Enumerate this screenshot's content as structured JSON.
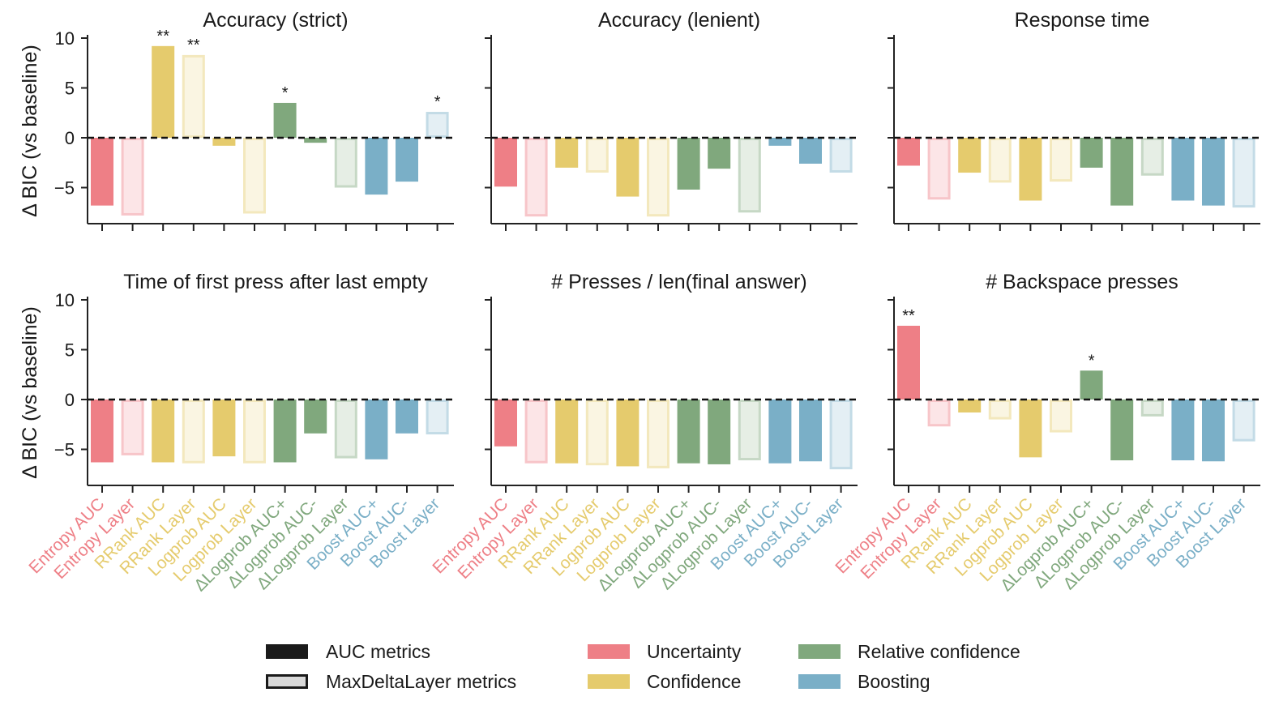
{
  "figure": {
    "ylabel": "Δ BIC (vs baseline)",
    "ylim": [
      -8.5,
      10
    ],
    "yticks": [
      10,
      5,
      0,
      -5
    ],
    "ytick_labels": [
      "10",
      "5",
      "0",
      "−5"
    ]
  },
  "palette": {
    "Uncertainty": "#ee7f86",
    "Confidence": "#e5cb6d",
    "Relative confidence": "#80a87d",
    "Boosting": "#7aafc7"
  },
  "legend": {
    "style_items": [
      {
        "label": "AUC metrics",
        "style": "solid"
      },
      {
        "label": "MaxDeltaLayer metrics",
        "style": "outline"
      }
    ],
    "color_items": [
      {
        "label": "Uncertainty",
        "group": "Uncertainty"
      },
      {
        "label": "Confidence",
        "group": "Confidence"
      },
      {
        "label": "Relative confidence",
        "group": "Relative confidence"
      },
      {
        "label": "Boosting",
        "group": "Boosting"
      }
    ]
  },
  "chart_data": [
    {
      "type": "bar",
      "title": "Accuracy (strict)",
      "categories": [
        "Entropy AUC",
        "Entropy Layer",
        "RRank AUC",
        "RRank Layer",
        "Logprob AUC",
        "Logprob Layer",
        "ΔLogprob AUC+",
        "ΔLogprob AUC-",
        "ΔLogprob Layer",
        "Boost AUC+",
        "Boost AUC-",
        "Boost Layer"
      ],
      "groups": [
        "Uncertainty",
        "Uncertainty",
        "Confidence",
        "Confidence",
        "Confidence",
        "Confidence",
        "Relative confidence",
        "Relative confidence",
        "Relative confidence",
        "Boosting",
        "Boosting",
        "Boosting"
      ],
      "styles": [
        "solid",
        "outline",
        "solid",
        "outline",
        "solid",
        "outline",
        "solid",
        "solid",
        "outline",
        "solid",
        "solid",
        "outline"
      ],
      "values": [
        -6.8,
        -7.8,
        9.2,
        8.3,
        -0.8,
        -7.6,
        3.5,
        -0.5,
        -5.0,
        -5.7,
        -4.4,
        2.6
      ],
      "annotations": [
        "",
        "",
        "**",
        "**",
        "",
        "",
        "*",
        "",
        "",
        "",
        "",
        "*"
      ],
      "xlabel": "",
      "ylabel": "Δ BIC (vs baseline)",
      "ylim": [
        -8.5,
        10
      ]
    },
    {
      "type": "bar",
      "title": "Accuracy (lenient)",
      "categories": [
        "Entropy AUC",
        "Entropy Layer",
        "RRank AUC",
        "RRank Layer",
        "Logprob AUC",
        "Logprob Layer",
        "ΔLogprob AUC+",
        "ΔLogprob AUC-",
        "ΔLogprob Layer",
        "Boost AUC+",
        "Boost AUC-",
        "Boost Layer"
      ],
      "groups": [
        "Uncertainty",
        "Uncertainty",
        "Confidence",
        "Confidence",
        "Confidence",
        "Confidence",
        "Relative confidence",
        "Relative confidence",
        "Relative confidence",
        "Boosting",
        "Boosting",
        "Boosting"
      ],
      "styles": [
        "solid",
        "outline",
        "solid",
        "outline",
        "solid",
        "outline",
        "solid",
        "solid",
        "outline",
        "solid",
        "solid",
        "outline"
      ],
      "values": [
        -4.9,
        -7.9,
        -3.0,
        -3.5,
        -5.9,
        -7.9,
        -5.2,
        -3.1,
        -7.5,
        -0.8,
        -2.6,
        -3.5
      ],
      "annotations": [
        "",
        "",
        "",
        "",
        "",
        "",
        "",
        "",
        "",
        "",
        "",
        ""
      ],
      "xlabel": "",
      "ylabel": "",
      "ylim": [
        -8.5,
        10
      ]
    },
    {
      "type": "bar",
      "title": "Response time",
      "categories": [
        "Entropy AUC",
        "Entropy Layer",
        "RRank AUC",
        "RRank Layer",
        "Logprob AUC",
        "Logprob Layer",
        "ΔLogprob AUC+",
        "ΔLogprob AUC-",
        "ΔLogprob Layer",
        "Boost AUC+",
        "Boost AUC-",
        "Boost Layer"
      ],
      "groups": [
        "Uncertainty",
        "Uncertainty",
        "Confidence",
        "Confidence",
        "Confidence",
        "Confidence",
        "Relative confidence",
        "Relative confidence",
        "Relative confidence",
        "Boosting",
        "Boosting",
        "Boosting"
      ],
      "styles": [
        "solid",
        "outline",
        "solid",
        "outline",
        "solid",
        "outline",
        "solid",
        "solid",
        "outline",
        "solid",
        "solid",
        "outline"
      ],
      "values": [
        -2.8,
        -6.2,
        -3.5,
        -4.5,
        -6.3,
        -4.4,
        -3.0,
        -6.8,
        -3.8,
        -6.3,
        -6.8,
        -7.0
      ],
      "annotations": [
        "",
        "",
        "",
        "",
        "",
        "",
        "",
        "",
        "",
        "",
        "",
        ""
      ],
      "xlabel": "",
      "ylabel": "",
      "ylim": [
        -8.5,
        10
      ]
    },
    {
      "type": "bar",
      "title": "Time of first press after last empty",
      "categories": [
        "Entropy AUC",
        "Entropy Layer",
        "RRank AUC",
        "RRank Layer",
        "Logprob AUC",
        "Logprob Layer",
        "ΔLogprob AUC+",
        "ΔLogprob AUC-",
        "ΔLogprob Layer",
        "Boost AUC+",
        "Boost AUC-",
        "Boost Layer"
      ],
      "groups": [
        "Uncertainty",
        "Uncertainty",
        "Confidence",
        "Confidence",
        "Confidence",
        "Confidence",
        "Relative confidence",
        "Relative confidence",
        "Relative confidence",
        "Boosting",
        "Boosting",
        "Boosting"
      ],
      "styles": [
        "solid",
        "outline",
        "solid",
        "outline",
        "solid",
        "outline",
        "solid",
        "solid",
        "outline",
        "solid",
        "solid",
        "outline"
      ],
      "values": [
        -6.3,
        -5.6,
        -6.3,
        -6.4,
        -5.7,
        -6.4,
        -6.3,
        -3.4,
        -5.9,
        -6.0,
        -3.4,
        -3.5
      ],
      "annotations": [
        "",
        "",
        "",
        "",
        "",
        "",
        "",
        "",
        "",
        "",
        "",
        ""
      ],
      "xlabel": "",
      "ylabel": "Δ BIC (vs baseline)",
      "ylim": [
        -8.5,
        10
      ]
    },
    {
      "type": "bar",
      "title": "# Presses / len(final answer)",
      "categories": [
        "Entropy AUC",
        "Entropy Layer",
        "RRank AUC",
        "RRank Layer",
        "Logprob AUC",
        "Logprob Layer",
        "ΔLogprob AUC+",
        "ΔLogprob AUC-",
        "ΔLogprob Layer",
        "Boost AUC+",
        "Boost AUC-",
        "Boost Layer"
      ],
      "groups": [
        "Uncertainty",
        "Uncertainty",
        "Confidence",
        "Confidence",
        "Confidence",
        "Confidence",
        "Relative confidence",
        "Relative confidence",
        "Relative confidence",
        "Boosting",
        "Boosting",
        "Boosting"
      ],
      "styles": [
        "solid",
        "outline",
        "solid",
        "outline",
        "solid",
        "outline",
        "solid",
        "solid",
        "outline",
        "solid",
        "solid",
        "outline"
      ],
      "values": [
        -4.7,
        -6.4,
        -6.4,
        -6.6,
        -6.7,
        -6.9,
        -6.4,
        -6.5,
        -6.1,
        -6.4,
        -6.2,
        -7.0
      ],
      "annotations": [
        "",
        "",
        "",
        "",
        "",
        "",
        "",
        "",
        "",
        "",
        "",
        ""
      ],
      "xlabel": "",
      "ylabel": "",
      "ylim": [
        -8.5,
        10
      ]
    },
    {
      "type": "bar",
      "title": "# Backspace presses",
      "categories": [
        "Entropy AUC",
        "Entropy Layer",
        "RRank AUC",
        "RRank Layer",
        "Logprob AUC",
        "Logprob Layer",
        "ΔLogprob AUC+",
        "ΔLogprob AUC-",
        "ΔLogprob Layer",
        "Boost AUC+",
        "Boost AUC-",
        "Boost Layer"
      ],
      "groups": [
        "Uncertainty",
        "Uncertainty",
        "Confidence",
        "Confidence",
        "Confidence",
        "Confidence",
        "Relative confidence",
        "Relative confidence",
        "Relative confidence",
        "Boosting",
        "Boosting",
        "Boosting"
      ],
      "styles": [
        "solid",
        "outline",
        "solid",
        "outline",
        "solid",
        "outline",
        "solid",
        "solid",
        "outline",
        "solid",
        "solid",
        "outline"
      ],
      "values": [
        7.4,
        -2.7,
        -1.3,
        -2.0,
        -5.8,
        -3.3,
        2.9,
        -6.1,
        -1.7,
        -6.1,
        -6.2,
        -4.2
      ],
      "annotations": [
        "**",
        "",
        "",
        "",
        "",
        "",
        "*",
        "",
        "",
        "",
        "",
        ""
      ],
      "xlabel": "",
      "ylabel": "",
      "ylim": [
        -8.5,
        10
      ]
    }
  ]
}
